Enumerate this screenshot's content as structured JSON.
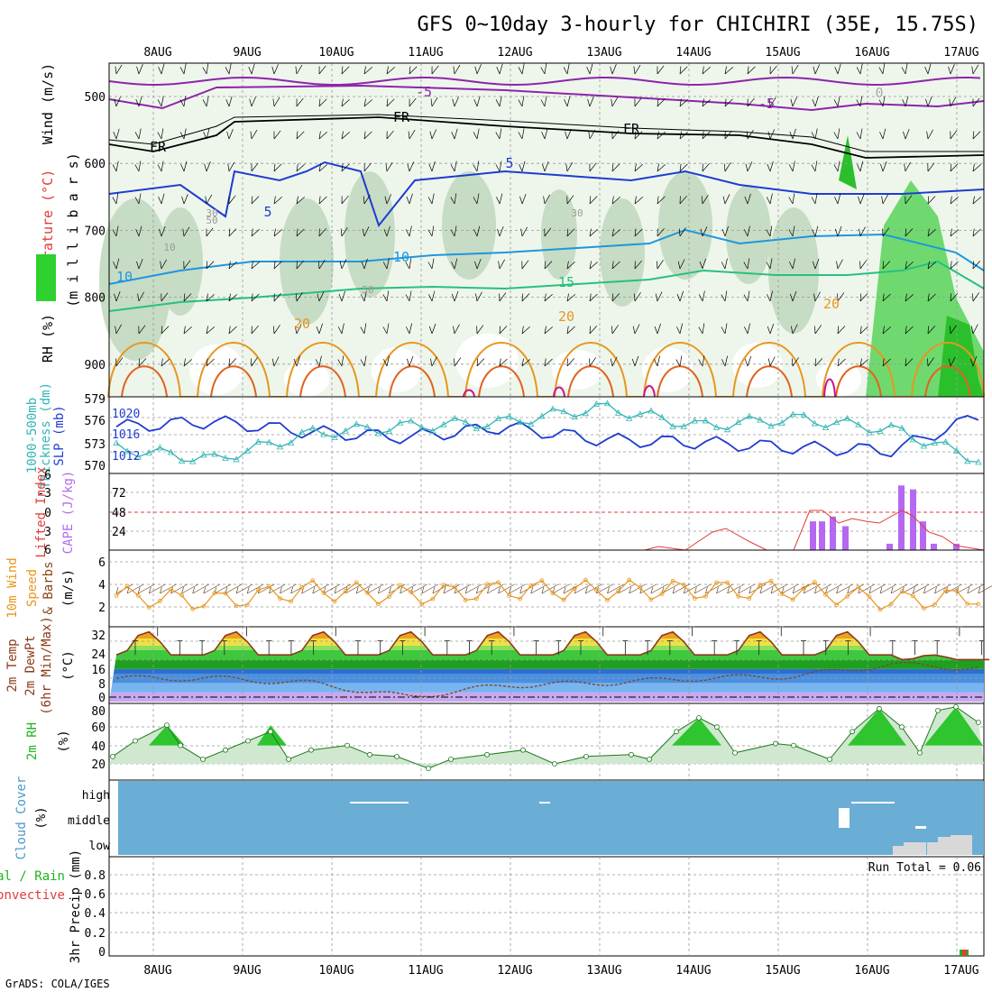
{
  "title": "GFS 0~10day 3-hourly for CHICHIRI (35E, 15.75S)",
  "credit": "GrADS: COLA/IGES",
  "date_labels": [
    "8AUG",
    "9AUG",
    "10AUG",
    "11AUG",
    "12AUG",
    "13AUG",
    "14AUG",
    "15AUG",
    "16AUG",
    "17AUG"
  ],
  "colors": {
    "slp": "#1e3cd2",
    "thickness": "#32b4b4",
    "lifted": "#e03c3c",
    "cape": "#b469f0",
    "wind": "#e8961e",
    "temp_line": "#8b3a1a",
    "rh": "#1eb41e",
    "cloud": "#6aaed6",
    "cloud_amount": "#ffffff",
    "precip_total": "#1eb41e",
    "precip_conv": "#e03c3c"
  },
  "panels": {
    "upper": {
      "left_labels": [
        "Wind (m/s)",
        "Temperature (°C)",
        "RH (%)"
      ],
      "axis_title": "(m i l l i b a r s)",
      "y_ticks": [
        "500",
        "600",
        "700",
        "800",
        "900"
      ],
      "contour_labels": [
        "-5",
        "-5",
        "0",
        "FR",
        "FR",
        "FR",
        "5",
        "5",
        "10",
        "10",
        "15",
        "20",
        "20",
        "20",
        "30",
        "30",
        "50",
        "50",
        "10"
      ]
    },
    "slp": {
      "labels": [
        "1000-500mb",
        "Thickness (dm)",
        "SLP (mb)"
      ],
      "left_ticks": [
        "579",
        "576",
        "573",
        "570"
      ],
      "right_ticks": [
        "1020",
        "1016",
        "1012"
      ]
    },
    "cape": {
      "labels": [
        "Lifted Index",
        "CAPE (J/kg)"
      ],
      "left_ticks": [
        "-6",
        "-3",
        "0",
        "3",
        "6"
      ],
      "right_ticks": [
        "72",
        "48",
        "24"
      ]
    },
    "wind10": {
      "labels": [
        "10m Wind",
        "Speed",
        "& Barbs"
      ],
      "unit": "(m/s)",
      "ticks": [
        "6",
        "4",
        "2"
      ]
    },
    "temp": {
      "labels": [
        "2m Temp",
        "2m DewPt",
        "(6hr Min/Max)"
      ],
      "unit": "(°C)",
      "ticks": [
        "32",
        "24",
        "16",
        "8",
        "0"
      ]
    },
    "rh": {
      "labels": [
        "2m RH"
      ],
      "unit": "(%)",
      "ticks": [
        "80",
        "60",
        "40",
        "20"
      ]
    },
    "cloud": {
      "labels": [
        "Cloud Cover"
      ],
      "unit": "(%)",
      "levels": [
        "high",
        "middle",
        "low"
      ]
    },
    "precip": {
      "labels": [
        "Total / Rain",
        "Convective"
      ],
      "axis_title": "3hr Precip (mm)",
      "ticks": [
        "0.8",
        "0.6",
        "0.4",
        "0.2",
        "0"
      ],
      "run_total": "Run Total = 0.06"
    }
  },
  "chart_data": [
    {
      "type": "line",
      "title": "GFS 0~10day 3-hourly for CHICHIRI (35E, 15.75S)",
      "panel": "SLP and 1000-500mb thickness",
      "x": [
        "8AUG",
        "9AUG",
        "10AUG",
        "11AUG",
        "12AUG",
        "13AUG",
        "14AUG",
        "15AUG",
        "16AUG",
        "17AUG"
      ],
      "series": [
        {
          "name": "SLP (mb)",
          "values": [
            1017.5,
            1018.5,
            1016.5,
            1015.5,
            1017.5,
            1015.0,
            1014.5,
            1013.5,
            1013.0,
            1020.5
          ]
        },
        {
          "name": "1000-500mb Thickness (dm)",
          "values": [
            572.5,
            571.0,
            574.5,
            575.5,
            576.0,
            578.0,
            575.5,
            576.5,
            575.0,
            570.5
          ]
        }
      ]
    },
    {
      "type": "bar",
      "panel": "CAPE / Lifted Index",
      "x": [
        "15.5AUG",
        "15.6AUG",
        "15.7AUG",
        "15.8AUG",
        "16.4AUG",
        "16.5AUG",
        "16.6AUG",
        "16.7AUG",
        "16.9AUG"
      ],
      "series": [
        {
          "name": "CAPE (J/kg)",
          "values": [
            36,
            42,
            36,
            30,
            81,
            76,
            36,
            16,
            8
          ]
        }
      ]
    },
    {
      "type": "line",
      "panel": "10m Wind Speed",
      "x": [
        "8AUG",
        "9AUG",
        "10AUG",
        "11AUG",
        "12AUG",
        "13AUG",
        "14AUG",
        "15AUG",
        "16AUG",
        "17AUG"
      ],
      "series": [
        {
          "name": "10m Wind Speed (m/s)",
          "values": [
            3.0,
            2.5,
            3.5,
            3.0,
            3.5,
            3.5,
            3.5,
            3.5,
            2.5,
            3.0
          ]
        }
      ]
    },
    {
      "type": "line",
      "panel": "2m Temp / DewPt",
      "x": [
        "8AUG",
        "9AUG",
        "10AUG",
        "11AUG",
        "12AUG",
        "13AUG",
        "14AUG",
        "15AUG",
        "16AUG",
        "17AUG"
      ],
      "series": [
        {
          "name": "2m Temp (°C) max",
          "values": [
            25,
            28,
            28,
            28,
            28,
            28,
            28,
            28,
            28,
            18
          ]
        },
        {
          "name": "2m DewPt (°C)",
          "values": [
            8,
            8,
            6,
            0,
            5,
            6,
            8,
            9,
            14,
            12
          ]
        }
      ]
    },
    {
      "type": "area",
      "panel": "2m RH",
      "x": [
        "8AUG",
        "9AUG",
        "10AUG",
        "11AUG",
        "12AUG",
        "13AUG",
        "14AUG",
        "15AUG",
        "16AUG",
        "17AUG"
      ],
      "series": [
        {
          "name": "2m RH (%)",
          "values": [
            50,
            45,
            38,
            28,
            30,
            30,
            68,
            40,
            80,
            82
          ]
        }
      ]
    },
    {
      "type": "bar",
      "panel": "3hr Precip",
      "x": [
        "17AUG"
      ],
      "series": [
        {
          "name": "3hr Precip (mm)",
          "values": [
            0.06
          ]
        }
      ]
    }
  ]
}
